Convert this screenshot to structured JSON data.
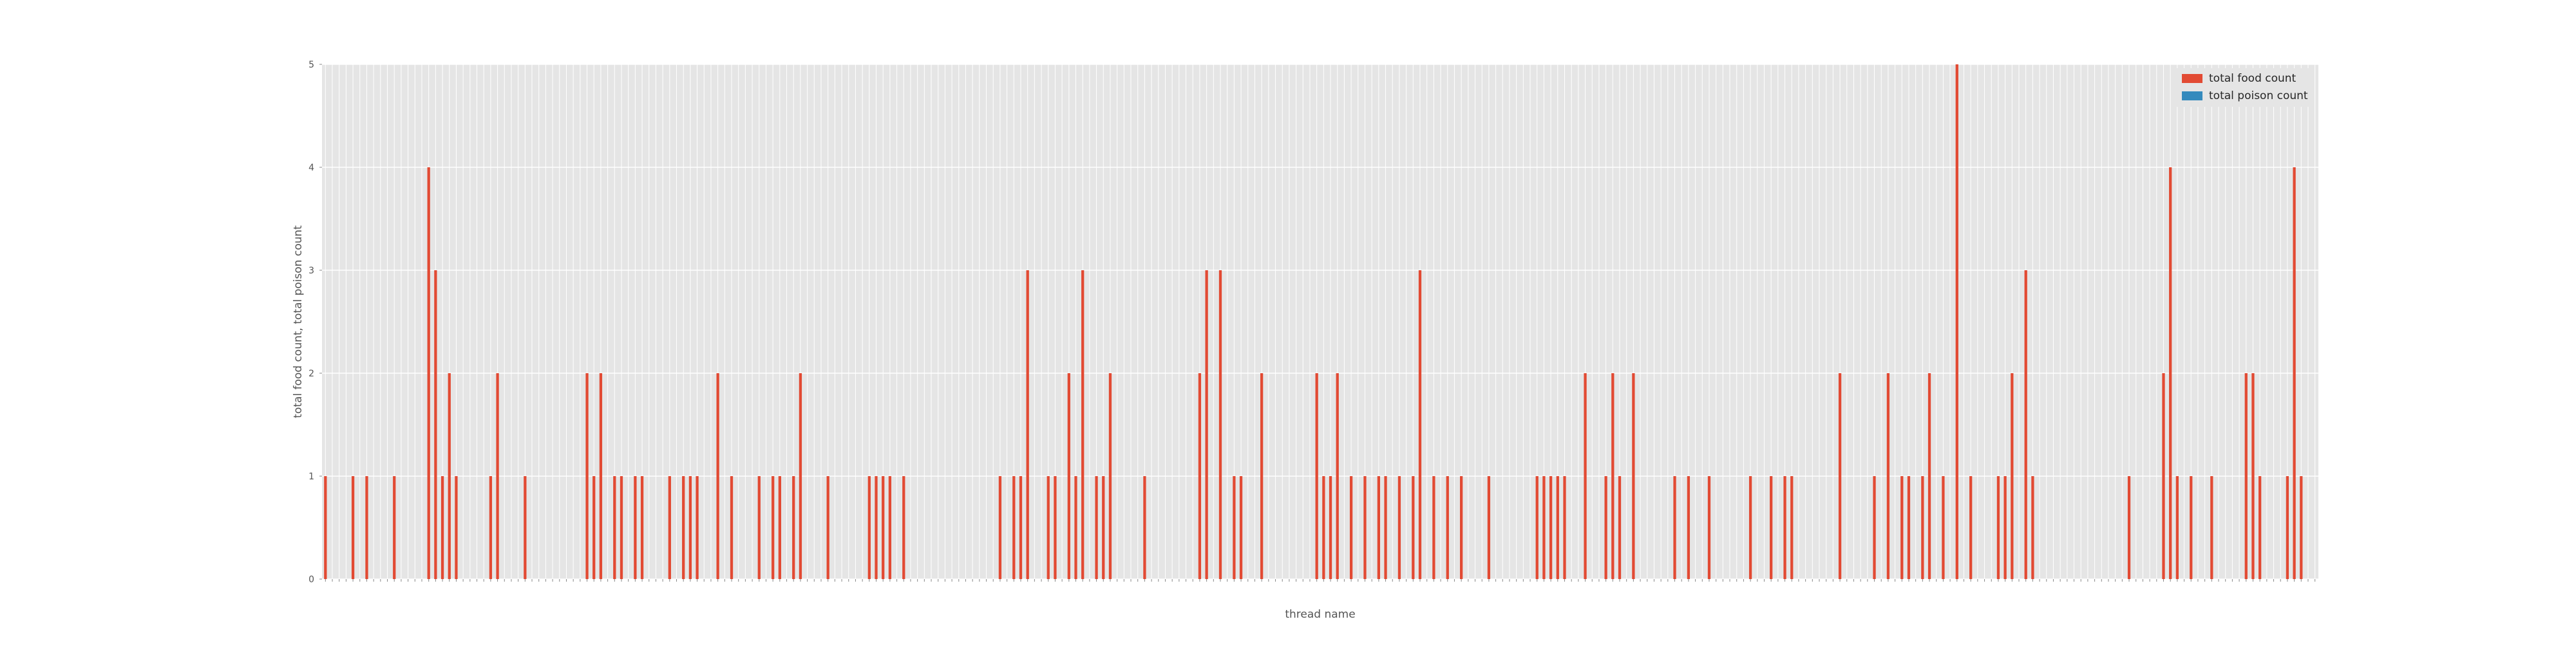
{
  "chart_data": {
    "type": "bar",
    "xlabel": "thread name",
    "ylabel": "total food count, total poison count",
    "ylim": [
      0,
      5
    ],
    "yticks": [
      "0",
      "1",
      "2",
      "3",
      "4",
      "5"
    ],
    "grid": true,
    "legend_placement": "top-right",
    "categories_note": "x tick labels are rotated and illegible at this resolution",
    "series": [
      {
        "name": "total food count",
        "color": "#e24a33",
        "values": [
          1,
          0,
          0,
          0,
          1,
          0,
          1,
          0,
          0,
          0,
          1,
          0,
          0,
          0,
          0,
          4,
          3,
          1,
          2,
          1,
          0,
          0,
          0,
          0,
          1,
          2,
          0,
          0,
          0,
          1,
          0,
          0,
          0,
          0,
          0,
          0,
          0,
          0,
          2,
          1,
          2,
          0,
          1,
          1,
          0,
          1,
          1,
          0,
          0,
          0,
          1,
          0,
          1,
          1,
          1,
          0,
          0,
          2,
          0,
          1,
          0,
          0,
          0,
          1,
          0,
          1,
          1,
          0,
          1,
          2,
          0,
          0,
          0,
          1,
          0,
          0,
          0,
          0,
          0,
          1,
          1,
          1,
          1,
          0,
          1,
          0,
          0,
          0,
          0,
          0,
          0,
          0,
          0,
          0,
          0,
          0,
          0,
          0,
          1,
          0,
          1,
          1,
          3,
          0,
          0,
          1,
          1,
          0,
          2,
          1,
          3,
          0,
          1,
          1,
          2,
          0,
          0,
          0,
          0,
          1,
          0,
          0,
          0,
          0,
          0,
          0,
          0,
          2,
          3,
          0,
          3,
          0,
          1,
          1,
          0,
          0,
          2,
          0,
          0,
          0,
          0,
          0,
          0,
          0,
          2,
          1,
          1,
          2,
          0,
          1,
          0,
          1,
          0,
          1,
          1,
          0,
          1,
          0,
          1,
          3,
          0,
          1,
          0,
          1,
          0,
          1,
          0,
          0,
          0,
          1,
          0,
          0,
          0,
          0,
          0,
          0,
          1,
          1,
          1,
          1,
          1,
          0,
          0,
          2,
          0,
          0,
          1,
          2,
          1,
          0,
          2,
          0,
          0,
          0,
          0,
          0,
          1,
          0,
          1,
          0,
          0,
          1,
          0,
          0,
          0,
          0,
          0,
          1,
          0,
          0,
          1,
          0,
          1,
          1,
          0,
          0,
          0,
          0,
          0,
          0,
          2,
          0,
          0,
          0,
          0,
          1,
          0,
          2,
          0,
          1,
          1,
          0,
          1,
          2,
          0,
          1,
          0,
          5,
          0,
          1,
          0,
          0,
          0,
          1,
          1,
          2,
          0,
          3,
          1,
          0,
          0,
          0,
          0,
          0,
          0,
          0,
          0,
          0,
          0,
          0,
          0,
          0,
          1,
          0,
          0,
          0,
          0,
          2,
          4,
          1,
          0,
          1,
          0,
          0,
          1,
          0,
          0,
          0,
          0,
          2,
          2,
          1,
          0,
          0,
          0,
          1,
          4,
          1,
          0,
          0
        ]
      },
      {
        "name": "total poison count",
        "color": "#348abd",
        "values": [
          0,
          0,
          0,
          0,
          0,
          0,
          0,
          0,
          0,
          0,
          0,
          0,
          0,
          0,
          0,
          0,
          0,
          0,
          0,
          0,
          0,
          0,
          0,
          0,
          0,
          0,
          0,
          0,
          0,
          0,
          0,
          0,
          0,
          0,
          0,
          0,
          0,
          0,
          0,
          0,
          0,
          0,
          0,
          0,
          0,
          0,
          0,
          0,
          0,
          0,
          0,
          0,
          0,
          0,
          0,
          0,
          0,
          0,
          0,
          0,
          0,
          0,
          0,
          0,
          0,
          0,
          0,
          0,
          0,
          0,
          0,
          0,
          0,
          0,
          0,
          0,
          0,
          0,
          0,
          0,
          0,
          0,
          0,
          0,
          0,
          0,
          0,
          0,
          0,
          0,
          0,
          0,
          0,
          0,
          0,
          0,
          0,
          0,
          0,
          0,
          0,
          0,
          0,
          0,
          0,
          0,
          0,
          0,
          0,
          0,
          0,
          0,
          0,
          0,
          0,
          0,
          0,
          0,
          0,
          0,
          0,
          0,
          0,
          0,
          0,
          0,
          0,
          0,
          0,
          0,
          0,
          0,
          0,
          0,
          0,
          0,
          0,
          0,
          0,
          0,
          0,
          0,
          0,
          0,
          0,
          0,
          0,
          0,
          0,
          0,
          0,
          0,
          0,
          0,
          0,
          0,
          0,
          0,
          0,
          0,
          0,
          0,
          0,
          0,
          0,
          0,
          0,
          0,
          0,
          0,
          0,
          0,
          0,
          0,
          0,
          0,
          0,
          0,
          0,
          0,
          0,
          0,
          0,
          0,
          0,
          0,
          0,
          0,
          0,
          0,
          0,
          0,
          0,
          0,
          0,
          0,
          0,
          0,
          0,
          0,
          0,
          0,
          0,
          0,
          0,
          0,
          0,
          0,
          0,
          0,
          0,
          0,
          0,
          0,
          0,
          0,
          0,
          0,
          0,
          0,
          0,
          0,
          0,
          0,
          0,
          0,
          0,
          0,
          0,
          0,
          0,
          0,
          0,
          0,
          0,
          0,
          0,
          0,
          0,
          0,
          0,
          0,
          0,
          0,
          0,
          0,
          0,
          0,
          0,
          0,
          0,
          0,
          0,
          0,
          0,
          0,
          0,
          0,
          0,
          0,
          0,
          0,
          0,
          0,
          0,
          0,
          0,
          0,
          0,
          0,
          0,
          0,
          0,
          0,
          0,
          0,
          0,
          0,
          0,
          0,
          0,
          0,
          0,
          0,
          0,
          0,
          0,
          0,
          0,
          0,
          0,
          0,
          0,
          0,
          0,
          0,
          0,
          0,
          0,
          0,
          0,
          0,
          0,
          0,
          0
        ]
      }
    ]
  }
}
